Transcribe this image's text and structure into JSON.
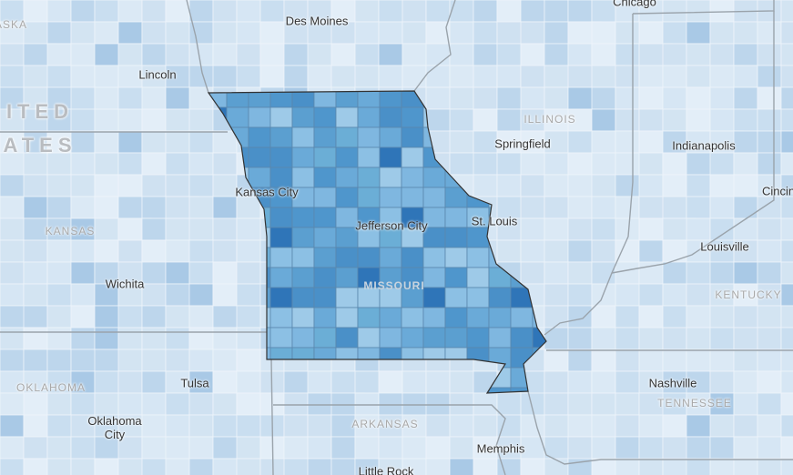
{
  "map": {
    "cities": [
      "Chicago",
      "Des Moines",
      "Lincoln",
      "Springfield",
      "Indianapolis",
      "Cincin",
      "Kansas City",
      "Jefferson City",
      "St. Louis",
      "Louisville",
      "Wichita",
      "Nashville",
      "Tulsa",
      "Oklahoma City",
      "Memphis",
      "Little Rock"
    ],
    "states": [
      "ASKA",
      "ILLINOIS",
      "KANSAS",
      "MISSOURI",
      "KENTUCKY",
      "TENNESSEE",
      "OKLAHOMA",
      "ARKANSAS"
    ],
    "country": [
      "ITED",
      "ATES"
    ]
  }
}
